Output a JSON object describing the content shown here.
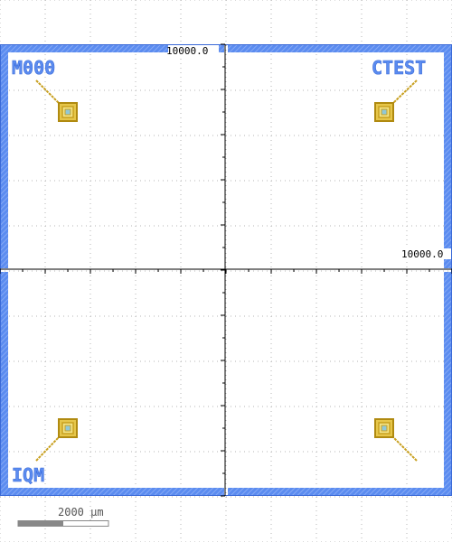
{
  "layout_viewer": {
    "colors": {
      "background": "#ffffff",
      "dot_grid": "#b5b5b5",
      "frame_blue": "#5b8cf0",
      "frame_hatch": "#86a9f4",
      "axis": "#000000",
      "mark_gold": "#c8a020",
      "mark_fill": "#f0e070",
      "mark_center": "#90c8d8",
      "label_text": "#5b8cf0",
      "scale_bar": "#888888"
    },
    "quadrant_labels": {
      "top_left": "M000",
      "top_right": "CTEST",
      "bottom_left": "IQM"
    },
    "axis_readouts": {
      "y_axis_max": "10000.0",
      "x_axis_max": "10000.0"
    },
    "scale_bar": {
      "label": "2000 µm"
    },
    "alignment_marks": [
      {
        "name": "top-left",
        "icon": "alignment-mark-icon"
      },
      {
        "name": "top-right",
        "icon": "alignment-mark-icon"
      },
      {
        "name": "bottom-left",
        "icon": "alignment-mark-icon"
      },
      {
        "name": "bottom-right",
        "icon": "alignment-mark-icon"
      }
    ]
  }
}
